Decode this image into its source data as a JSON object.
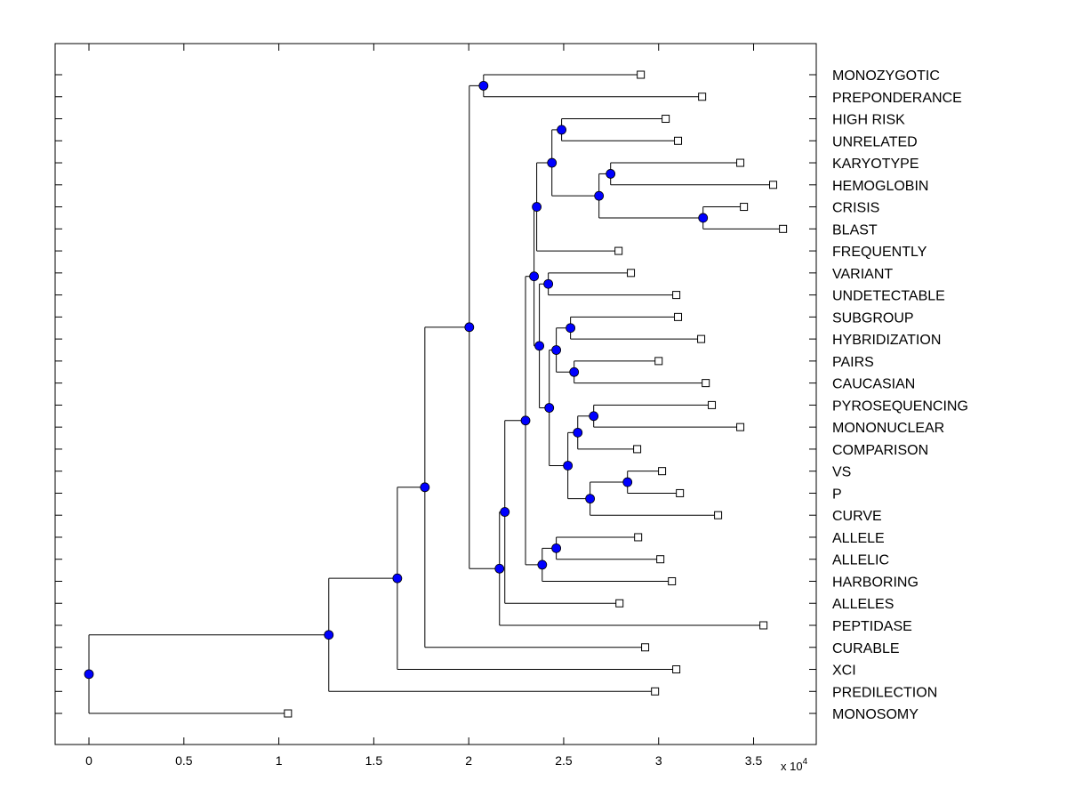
{
  "chart_data": {
    "type": "dendrogram",
    "title": "",
    "xlabel": "",
    "ylabel": "",
    "x_multiplier_label": "x 10",
    "x_multiplier_exponent": "4",
    "xlim": [
      -0.178,
      3.83
    ],
    "xticks": [
      0,
      0.5,
      1,
      1.5,
      2,
      2.5,
      3,
      3.5
    ],
    "xtick_labels": [
      "0",
      "0.5",
      "1",
      "1.5",
      "2",
      "2.5",
      "3",
      "3.5"
    ],
    "grid": false,
    "leaf_label_position": "right",
    "colors": {
      "node_marker": "#0000ff",
      "leaf_marker": "#ffffff",
      "line": "#000000"
    },
    "tree": {
      "x": 0,
      "children": [
        {
          "x": 1.263,
          "children": [
            {
              "x": 1.624,
              "children": [
                {
                  "x": 1.769,
                  "children": [
                    {
                      "x": 2.003,
                      "children": [
                        {
                          "x": 2.078,
                          "children": [
                            {
                              "label": "MONOZYGOTIC",
                              "x": 2.906
                            },
                            {
                              "label": "PREPONDERANCE",
                              "x": 3.229
                            }
                          ]
                        },
                        {
                          "x": 2.162,
                          "children": [
                            {
                              "x": 2.19,
                              "children": [
                                {
                                  "x": 2.299,
                                  "children": [
                                    {
                                      "x": 2.344,
                                      "children": [
                                        {
                                          "x": 2.358,
                                          "children": [
                                            {
                                              "x": 2.438,
                                              "children": [
                                                {
                                                  "x": 2.489,
                                                  "children": [
                                                    {
                                                      "label": "HIGH RISK",
                                                      "x": 3.037
                                                    },
                                                    {
                                                      "label": "UNRELATED",
                                                      "x": 3.102
                                                    }
                                                  ]
                                                },
                                                {
                                                  "x": 2.686,
                                                  "children": [
                                                    {
                                                      "x": 2.747,
                                                      "children": [
                                                        {
                                                          "label": "KARYOTYPE",
                                                          "x": 3.43
                                                        },
                                                        {
                                                          "label": "HEMOGLOBIN",
                                                          "x": 3.603
                                                        }
                                                      ]
                                                    },
                                                    {
                                                      "x": 3.234,
                                                      "children": [
                                                        {
                                                          "label": "CRISIS",
                                                          "x": 3.449
                                                        },
                                                        {
                                                          "label": "BLAST",
                                                          "x": 3.655
                                                        }
                                                      ]
                                                    }
                                                  ]
                                                }
                                              ]
                                            },
                                            {
                                              "label": "FREQUENTLY",
                                              "x": 2.789
                                            }
                                          ]
                                        },
                                        {
                                          "x": 2.372,
                                          "children": [
                                            {
                                              "x": 2.419,
                                              "children": [
                                                {
                                                  "label": "VARIANT",
                                                  "x": 2.854
                                                },
                                                {
                                                  "label": "UNDETECTABLE",
                                                  "x": 3.093
                                                }
                                              ]
                                            },
                                            {
                                              "x": 2.424,
                                              "children": [
                                                {
                                                  "x": 2.461,
                                                  "children": [
                                                    {
                                                      "x": 2.536,
                                                      "children": [
                                                        {
                                                          "label": "SUBGROUP",
                                                          "x": 3.102
                                                        },
                                                        {
                                                          "label": "HYBRIDIZATION",
                                                          "x": 3.224
                                                        }
                                                      ]
                                                    },
                                                    {
                                                      "x": 2.555,
                                                      "children": [
                                                        {
                                                          "label": "PAIRS",
                                                          "x": 3.0
                                                        },
                                                        {
                                                          "label": "CAUCASIAN",
                                                          "x": 3.248
                                                        }
                                                      ]
                                                    }
                                                  ]
                                                },
                                                {
                                                  "x": 2.522,
                                                  "children": [
                                                    {
                                                      "x": 2.574,
                                                      "children": [
                                                        {
                                                          "x": 2.658,
                                                          "children": [
                                                            {
                                                              "label": "PYROSEQUENCING",
                                                              "x": 3.28
                                                            },
                                                            {
                                                              "label": "MONONUCLEAR",
                                                              "x": 3.43
                                                            }
                                                          ]
                                                        },
                                                        {
                                                          "label": "COMPARISON",
                                                          "x": 2.887
                                                        }
                                                      ]
                                                    },
                                                    {
                                                      "x": 2.639,
                                                      "children": [
                                                        {
                                                          "x": 2.836,
                                                          "children": [
                                                            {
                                                              "label": "VS",
                                                              "x": 3.018
                                                            },
                                                            {
                                                              "label": "P",
                                                              "x": 3.112
                                                            }
                                                          ]
                                                        },
                                                        {
                                                          "label": "CURVE",
                                                          "x": 3.313
                                                        }
                                                      ]
                                                    }
                                                  ]
                                                }
                                              ]
                                            }
                                          ]
                                        }
                                      ]
                                    },
                                    {
                                      "x": 2.387,
                                      "children": [
                                        {
                                          "x": 2.461,
                                          "children": [
                                            {
                                              "label": "ALLELE",
                                              "x": 2.892
                                            },
                                            {
                                              "label": "ALLELIC",
                                              "x": 3.009
                                            }
                                          ]
                                        },
                                        {
                                          "label": "HARBORING",
                                          "x": 3.07
                                        }
                                      ]
                                    }
                                  ]
                                },
                                {
                                  "label": "ALLELES",
                                  "x": 2.794
                                }
                              ]
                            },
                            {
                              "label": "PEPTIDASE",
                              "x": 3.552
                            }
                          ]
                        }
                      ]
                    },
                    {
                      "label": "CURABLE",
                      "x": 2.929
                    }
                  ]
                },
                {
                  "label": "XCI",
                  "x": 3.093
                }
              ]
            },
            {
              "label": "PREDILECTION",
              "x": 2.981
            }
          ]
        },
        {
          "label": "MONOSOMY",
          "x": 1.048
        }
      ]
    }
  }
}
